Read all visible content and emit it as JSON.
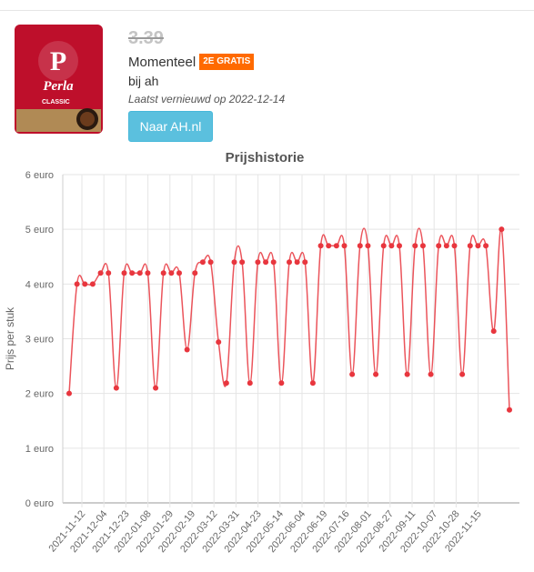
{
  "product": {
    "old_price": "3.39",
    "status_label": "Momenteel",
    "badge": "2E GRATIS",
    "store": "bij ah",
    "updated": "Laatst vernieuwd op 2022-12-14",
    "button_label": "Naar AH.nl",
    "package_brand": "Perla",
    "package_variant": "CLASSIC"
  },
  "colors": {
    "accent": "#5bc0de",
    "badge": "#ff6a00",
    "line": "#e8363e",
    "pack_red": "#c8102e"
  },
  "chart_data": {
    "type": "line",
    "title": "Prijshistorie",
    "ylabel": "Prijs per stuk",
    "xlabel": "",
    "ylim": [
      0,
      6
    ],
    "y_ticks": [
      "0 euro",
      "1 euro",
      "2 euro",
      "3 euro",
      "4 euro",
      "5 euro",
      "6 euro"
    ],
    "x_ticks": [
      "2021-11-12",
      "2021-12-04",
      "2021-12-23",
      "2022-01-08",
      "2022-01-29",
      "2022-02-19",
      "2022-03-12",
      "2022-03-31",
      "2022-04-23",
      "2022-05-14",
      "2022-06-04",
      "2022-06-19",
      "2022-07-16",
      "2022-08-01",
      "2022-08-27",
      "2022-09-11",
      "2022-10-07",
      "2022-10-28",
      "2022-11-15"
    ],
    "grid": true,
    "legend": "none",
    "values": [
      2.0,
      4.0,
      4.0,
      4.0,
      4.2,
      4.2,
      2.1,
      4.2,
      4.2,
      4.2,
      4.2,
      2.1,
      4.2,
      4.2,
      4.2,
      2.8,
      4.2,
      4.4,
      4.4,
      2.94,
      2.19,
      4.4,
      4.4,
      2.19,
      4.4,
      4.4,
      4.4,
      2.19,
      4.4,
      4.4,
      4.4,
      2.19,
      4.7,
      4.7,
      4.7,
      4.7,
      2.35,
      4.7,
      4.7,
      2.35,
      4.7,
      4.7,
      4.7,
      2.35,
      4.7,
      4.7,
      2.35,
      4.7,
      4.7,
      4.7,
      2.35,
      4.7,
      4.7,
      4.7,
      3.14,
      5.0,
      1.7
    ]
  }
}
